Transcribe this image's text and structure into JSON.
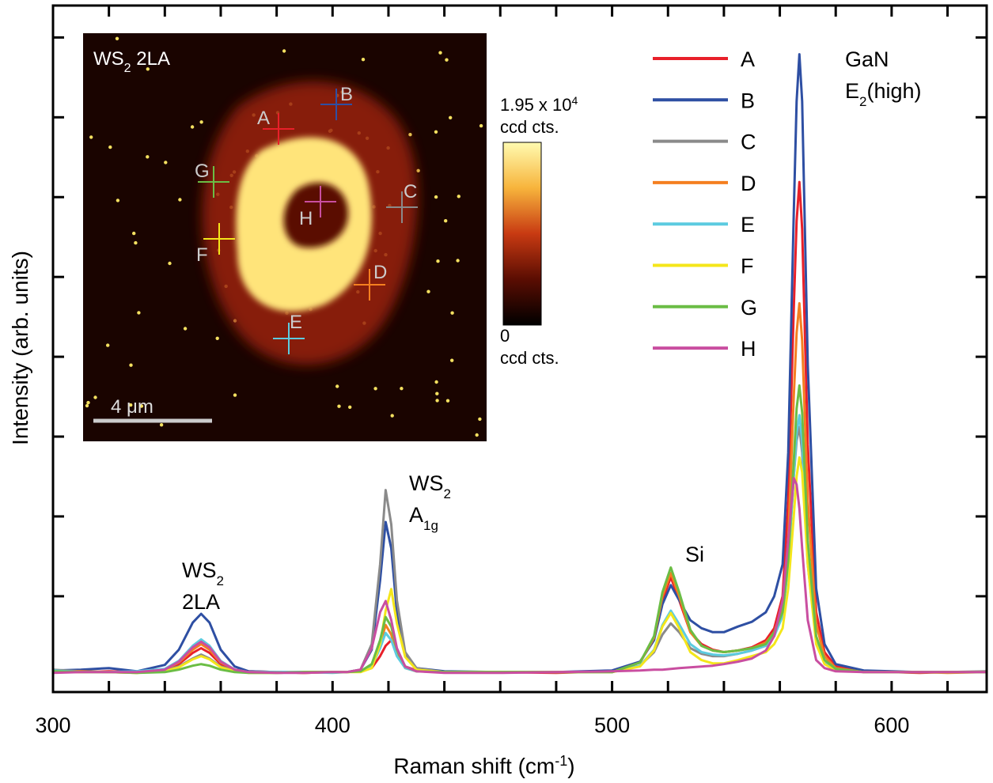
{
  "chart_data": {
    "type": "line",
    "x_label": {
      "text": "Raman shift (cm",
      "sup": "-1",
      "after": ")"
    },
    "y_label": "Intensity (arb. units)",
    "xlim": [
      300,
      634
    ],
    "ylim": [
      -0.2,
      8.4
    ],
    "xticks": [
      300,
      400,
      500,
      600
    ],
    "xminorticks": [
      320,
      340,
      360,
      380,
      420,
      440,
      460,
      480,
      520,
      540,
      560,
      580,
      620
    ],
    "yticks": [
      1,
      2,
      3,
      4,
      5,
      6,
      7,
      8
    ],
    "legend_position": "upper right",
    "x": [
      300,
      310,
      320,
      330,
      340,
      345,
      350,
      353,
      356,
      360,
      365,
      370,
      380,
      390,
      400,
      405,
      410,
      414,
      417,
      419,
      421,
      423,
      426,
      430,
      440,
      460,
      480,
      500,
      510,
      515,
      518,
      521,
      524,
      528,
      532,
      536,
      540,
      545,
      550,
      555,
      558,
      561,
      563,
      565,
      566,
      567,
      568,
      570,
      573,
      576,
      580,
      590,
      600,
      610,
      620,
      634
    ],
    "series": [
      {
        "name": "A",
        "color": "#e8202a",
        "values": [
          0.06,
          0.05,
          0.06,
          0.05,
          0.08,
          0.15,
          0.29,
          0.35,
          0.29,
          0.15,
          0.08,
          0.06,
          0.05,
          0.04,
          0.05,
          0.05,
          0.06,
          0.1,
          0.25,
          0.38,
          0.45,
          0.3,
          0.12,
          0.07,
          0.05,
          0.05,
          0.04,
          0.06,
          0.17,
          0.47,
          0.95,
          1.24,
          0.95,
          0.55,
          0.4,
          0.33,
          0.3,
          0.32,
          0.36,
          0.45,
          0.6,
          1.0,
          2.2,
          4.6,
          5.7,
          6.19,
          5.6,
          2.9,
          0.8,
          0.3,
          0.12,
          0.06,
          0.05,
          0.04,
          0.05,
          0.05
        ]
      },
      {
        "name": "B",
        "color": "#2e4fa3",
        "values": [
          0.07,
          0.08,
          0.1,
          0.06,
          0.14,
          0.33,
          0.67,
          0.78,
          0.67,
          0.33,
          0.12,
          0.06,
          0.05,
          0.05,
          0.05,
          0.05,
          0.08,
          0.33,
          1.2,
          1.93,
          1.6,
          0.8,
          0.27,
          0.1,
          0.06,
          0.05,
          0.05,
          0.07,
          0.18,
          0.45,
          0.9,
          1.14,
          0.95,
          0.7,
          0.6,
          0.55,
          0.55,
          0.62,
          0.68,
          0.8,
          1.0,
          1.4,
          2.8,
          5.8,
          7.2,
          7.79,
          7.2,
          3.9,
          1.1,
          0.4,
          0.15,
          0.07,
          0.06,
          0.05,
          0.05,
          0.05
        ]
      },
      {
        "name": "C",
        "color": "#8a8a8a",
        "values": [
          0.08,
          0.06,
          0.05,
          0.05,
          0.07,
          0.12,
          0.22,
          0.27,
          0.22,
          0.12,
          0.07,
          0.05,
          0.04,
          0.05,
          0.05,
          0.05,
          0.08,
          0.4,
          1.4,
          2.33,
          1.9,
          0.95,
          0.3,
          0.1,
          0.05,
          0.05,
          0.05,
          0.05,
          0.13,
          0.3,
          0.52,
          0.66,
          0.55,
          0.35,
          0.28,
          0.25,
          0.25,
          0.28,
          0.32,
          0.38,
          0.5,
          0.8,
          1.4,
          2.5,
          2.95,
          3.12,
          2.8,
          1.4,
          0.45,
          0.2,
          0.1,
          0.05,
          0.05,
          0.05,
          0.05,
          0.06
        ]
      },
      {
        "name": "D",
        "color": "#f47f20",
        "values": [
          0.05,
          0.06,
          0.05,
          0.04,
          0.08,
          0.17,
          0.33,
          0.4,
          0.33,
          0.17,
          0.08,
          0.05,
          0.05,
          0.04,
          0.05,
          0.05,
          0.06,
          0.13,
          0.4,
          0.64,
          0.52,
          0.28,
          0.1,
          0.06,
          0.05,
          0.05,
          0.05,
          0.05,
          0.17,
          0.48,
          1.0,
          1.29,
          1.0,
          0.55,
          0.38,
          0.32,
          0.3,
          0.32,
          0.35,
          0.42,
          0.55,
          0.85,
          1.7,
          3.5,
          4.3,
          4.67,
          4.2,
          2.2,
          0.65,
          0.25,
          0.1,
          0.05,
          0.05,
          0.05,
          0.04,
          0.05
        ]
      },
      {
        "name": "E",
        "color": "#5ccbe0",
        "values": [
          0.07,
          0.05,
          0.05,
          0.06,
          0.09,
          0.19,
          0.38,
          0.46,
          0.38,
          0.19,
          0.08,
          0.05,
          0.05,
          0.05,
          0.04,
          0.05,
          0.06,
          0.12,
          0.35,
          0.54,
          0.45,
          0.25,
          0.1,
          0.06,
          0.05,
          0.05,
          0.05,
          0.05,
          0.13,
          0.33,
          0.64,
          0.82,
          0.65,
          0.4,
          0.3,
          0.27,
          0.26,
          0.28,
          0.32,
          0.38,
          0.5,
          0.75,
          1.4,
          2.5,
          3.05,
          3.27,
          2.95,
          1.5,
          0.45,
          0.18,
          0.08,
          0.05,
          0.05,
          0.05,
          0.05,
          0.05
        ]
      },
      {
        "name": "F",
        "color": "#f4e61a",
        "values": [
          0.05,
          0.05,
          0.05,
          0.04,
          0.06,
          0.11,
          0.21,
          0.25,
          0.21,
          0.11,
          0.06,
          0.04,
          0.04,
          0.05,
          0.05,
          0.05,
          0.05,
          0.1,
          0.4,
          0.82,
          1.09,
          0.66,
          0.24,
          0.08,
          0.05,
          0.05,
          0.05,
          0.05,
          0.12,
          0.32,
          0.62,
          0.79,
          0.6,
          0.3,
          0.2,
          0.16,
          0.16,
          0.2,
          0.25,
          0.3,
          0.4,
          0.6,
          1.1,
          2.0,
          2.5,
          2.74,
          2.55,
          1.4,
          0.4,
          0.15,
          0.07,
          0.05,
          0.05,
          0.05,
          0.05,
          0.05
        ]
      },
      {
        "name": "G",
        "color": "#6bbd45",
        "values": [
          0.06,
          0.05,
          0.05,
          0.04,
          0.05,
          0.08,
          0.13,
          0.15,
          0.13,
          0.08,
          0.05,
          0.04,
          0.04,
          0.05,
          0.05,
          0.05,
          0.06,
          0.15,
          0.45,
          0.74,
          0.62,
          0.33,
          0.12,
          0.06,
          0.05,
          0.05,
          0.05,
          0.05,
          0.17,
          0.5,
          1.05,
          1.36,
          1.05,
          0.58,
          0.38,
          0.32,
          0.3,
          0.32,
          0.35,
          0.4,
          0.55,
          0.8,
          1.45,
          2.7,
          3.35,
          3.64,
          3.3,
          1.7,
          0.5,
          0.2,
          0.09,
          0.05,
          0.05,
          0.05,
          0.05,
          0.05
        ]
      },
      {
        "name": "H",
        "color": "#c94ea0",
        "values": [
          0.04,
          0.05,
          0.05,
          0.05,
          0.08,
          0.18,
          0.36,
          0.43,
          0.36,
          0.18,
          0.08,
          0.05,
          0.04,
          0.04,
          0.05,
          0.05,
          0.08,
          0.35,
          0.8,
          0.94,
          0.7,
          0.35,
          0.12,
          0.06,
          0.04,
          0.04,
          0.05,
          0.06,
          0.07,
          0.08,
          0.08,
          0.09,
          0.1,
          0.11,
          0.12,
          0.13,
          0.15,
          0.18,
          0.22,
          0.32,
          0.5,
          0.95,
          1.7,
          2.48,
          2.4,
          2.1,
          1.6,
          0.7,
          0.2,
          0.1,
          0.06,
          0.05,
          0.05,
          0.05,
          0.05,
          0.05
        ]
      }
    ],
    "annotations": [
      {
        "lines": [
          {
            "text": "WS",
            "sub": "2"
          },
          {
            "text": "2LA"
          }
        ]
      },
      {
        "lines": [
          {
            "text": "WS",
            "sub": "2"
          },
          {
            "text": "A",
            "sub": "1g"
          }
        ]
      },
      {
        "lines": [
          {
            "text": "Si"
          }
        ]
      },
      {
        "lines": [
          {
            "text": "GaN"
          },
          {
            "text": "E",
            "sub": "2",
            "after": "(high)"
          }
        ]
      }
    ],
    "inset": {
      "title": {
        "text": "WS",
        "sub": "2",
        "after": " 2LA"
      },
      "scale_bar": "4 μm",
      "colorbar_max": {
        "text": "1.95 x 10",
        "sup": "4"
      },
      "colorbar_max_unit": "ccd cts.",
      "colorbar_min": "0",
      "colorbar_min_unit": "ccd cts.",
      "points": [
        "A",
        "B",
        "C",
        "D",
        "E",
        "F",
        "G",
        "H"
      ]
    }
  }
}
